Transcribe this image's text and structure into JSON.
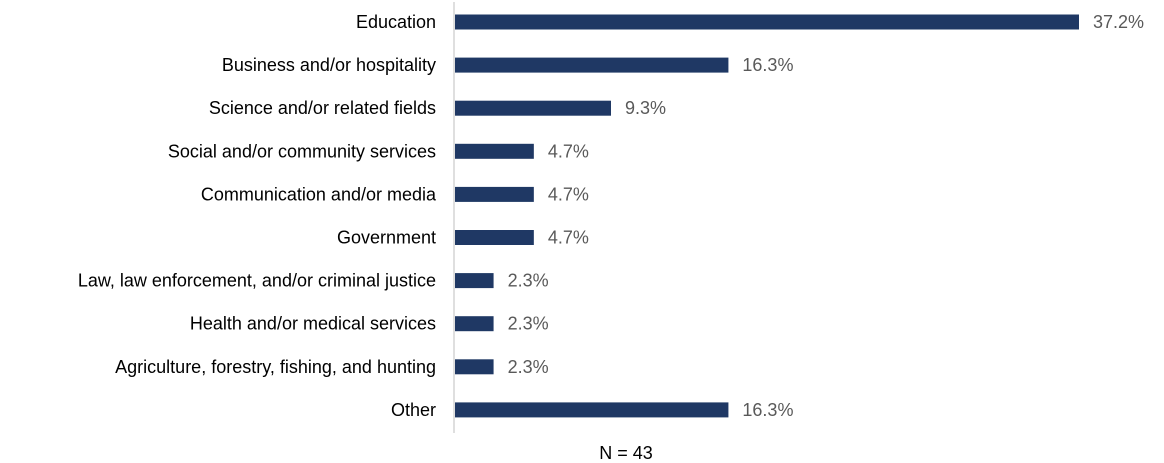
{
  "chart_data": {
    "type": "bar",
    "orientation": "horizontal",
    "categories": [
      "Education",
      "Business and/or hospitality",
      "Science and/or related fields",
      "Social and/or community services",
      "Communication and/or media",
      "Government",
      "Law, law enforcement, and/or criminal justice",
      "Health and/or medical services",
      "Agriculture, forestry, fishing, and hunting",
      "Other"
    ],
    "values": [
      37.2,
      16.3,
      9.3,
      4.7,
      4.7,
      4.7,
      2.3,
      2.3,
      2.3,
      16.3
    ],
    "value_labels": [
      "37.2%",
      "16.3%",
      "9.3%",
      "4.7%",
      "4.7%",
      "4.7%",
      "2.3%",
      "2.3%",
      "2.3%",
      "16.3%"
    ],
    "note": "N = 43",
    "xlim": [
      0,
      37.2
    ],
    "grid": false,
    "bar_color": "#1f3864",
    "value_label_color": "#595959",
    "axis_color": "#bfbfbf"
  }
}
